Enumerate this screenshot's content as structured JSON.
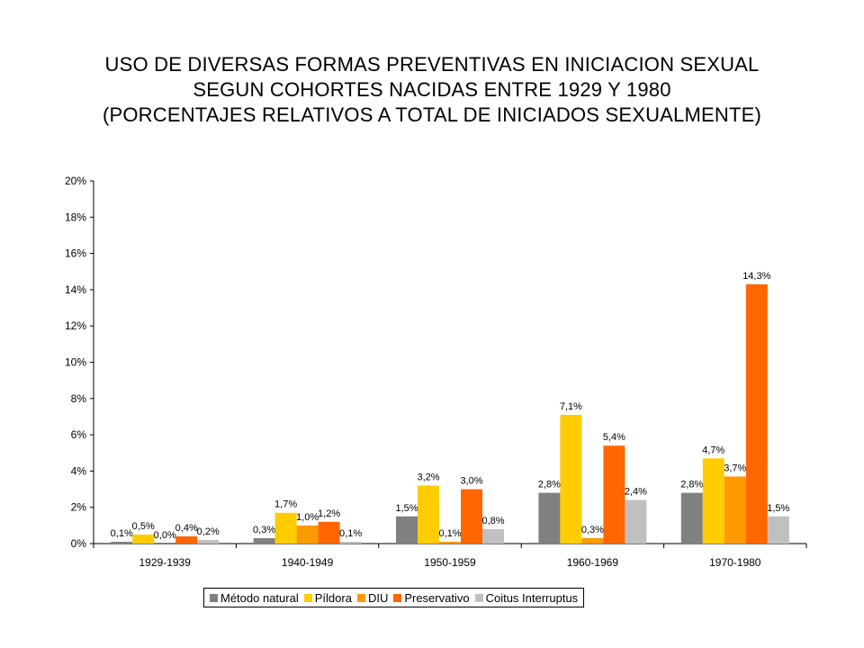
{
  "chart_data": {
    "type": "bar",
    "title_lines": [
      "USO DE DIVERSAS FORMAS PREVENTIVAS EN INICIACION SEXUAL",
      "SEGUN COHORTES NACIDAS ENTRE 1929 Y 1980",
      "(PORCENTAJES RELATIVOS A TOTAL DE INICIADOS SEXUALMENTE)"
    ],
    "categories": [
      "1929-1939",
      "1940-1949",
      "1950-1959",
      "1960-1969",
      "1970-1980"
    ],
    "series": [
      {
        "name": "Método natural",
        "color": "#808080",
        "values": [
          0.1,
          0.3,
          1.5,
          2.8,
          2.8
        ],
        "labels": [
          "0,1%",
          "0,3%",
          "1,5%",
          "2,8%",
          "2,8%"
        ]
      },
      {
        "name": "Píldora",
        "color": "#FFCC00",
        "values": [
          0.5,
          1.7,
          3.2,
          7.1,
          4.7
        ],
        "labels": [
          "0,5%",
          "1,7%",
          "3,2%",
          "7,1%",
          "4,7%"
        ]
      },
      {
        "name": "DIU",
        "color": "#FF9900",
        "values": [
          0.0,
          1.0,
          0.1,
          0.3,
          3.7
        ],
        "labels": [
          "0,0%",
          "1,0%",
          "0,1%",
          "0,3%",
          "3,7%"
        ]
      },
      {
        "name": "Preservativo",
        "color": "#FF6600",
        "values": [
          0.4,
          1.2,
          3.0,
          5.4,
          14.3
        ],
        "labels": [
          "0,4%",
          "1,2%",
          "3,0%",
          "5,4%",
          "14,3%"
        ]
      },
      {
        "name": "Coitus Interruptus",
        "color": "#C0C0C0",
        "values": [
          0.2,
          0.1,
          0.8,
          2.4,
          1.5
        ],
        "labels": [
          "0,2%",
          "0,1%",
          "0,8%",
          "2,4%",
          "1,5%"
        ]
      }
    ],
    "ylim": [
      0,
      20
    ],
    "yticks": [
      "0%",
      "2%",
      "4%",
      "6%",
      "8%",
      "10%",
      "12%",
      "14%",
      "16%",
      "18%",
      "20%"
    ],
    "grid": false,
    "legend_position": "bottom"
  }
}
